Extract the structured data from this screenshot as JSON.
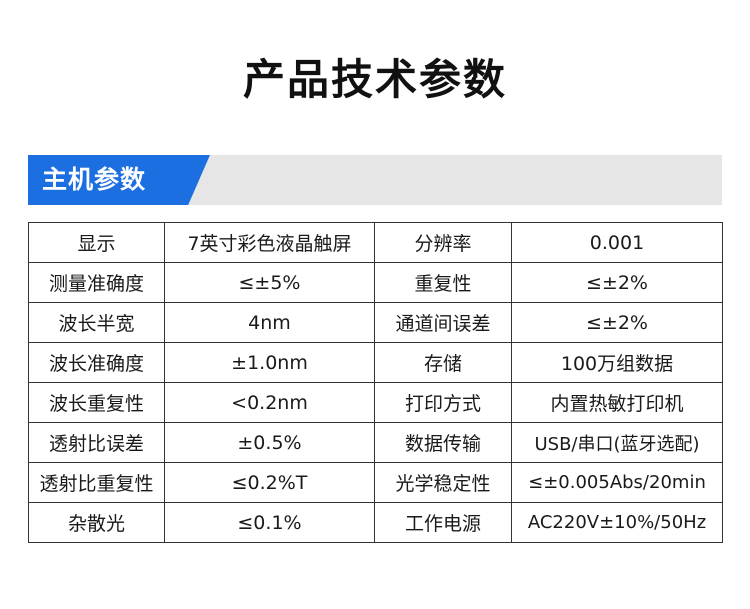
{
  "page": {
    "title": "产品技术参数"
  },
  "section": {
    "label": "主机参数",
    "accent_color": "#1c6fe0"
  },
  "specs": {
    "rows": [
      {
        "label1": "显示",
        "value1": "7英寸彩色液晶触屏",
        "label2": "分辨率",
        "value2": "0.001"
      },
      {
        "label1": "测量准确度",
        "value1": "≤±5%",
        "label2": "重复性",
        "value2": "≤±2%"
      },
      {
        "label1": "波长半宽",
        "value1": "4nm",
        "label2": "通道间误差",
        "value2": "≤±2%"
      },
      {
        "label1": "波长准确度",
        "value1": "±1.0nm",
        "label2": "存储",
        "value2": "100万组数据"
      },
      {
        "label1": "波长重复性",
        "value1": "<0.2nm",
        "label2": "打印方式",
        "value2": "内置热敏打印机"
      },
      {
        "label1": "透射比误差",
        "value1": "±0.5%",
        "label2": "数据传输",
        "value2": "USB/串口(蓝牙选配)"
      },
      {
        "label1": "透射比重复性",
        "value1": "≤0.2%T",
        "label2": "光学稳定性",
        "value2": "≤±0.005Abs/20min"
      },
      {
        "label1": "杂散光",
        "value1": "≤0.1%",
        "label2": "工作电源",
        "value2": "AC220V±10%/50Hz"
      }
    ]
  }
}
